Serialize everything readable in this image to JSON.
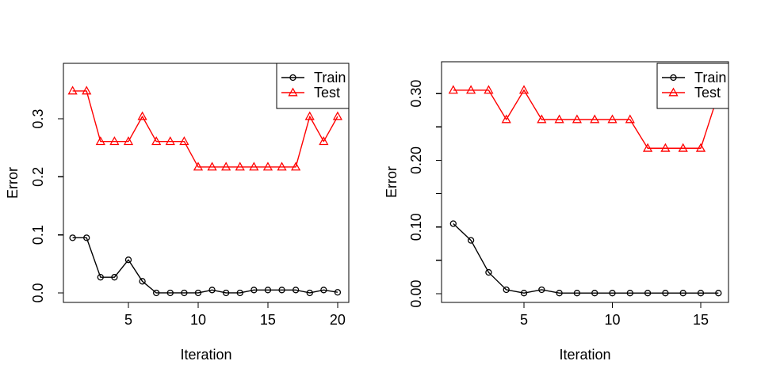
{
  "figure": {
    "background_color": "#ffffff",
    "axis_color": "#000000",
    "train_color": "#000000",
    "test_color": "#ff0000"
  },
  "chart_data": [
    {
      "type": "line",
      "title": "",
      "xlabel": "Iteration",
      "ylabel": "Error",
      "x": [
        1,
        2,
        3,
        4,
        5,
        6,
        7,
        8,
        9,
        10,
        11,
        12,
        13,
        14,
        15,
        16,
        17,
        18,
        19,
        20
      ],
      "series": [
        {
          "name": "Train",
          "color": "#000000",
          "marker": "circle",
          "values": [
            0.095,
            0.095,
            0.027,
            0.027,
            0.057,
            0.02,
            0.0,
            0.0,
            0.0,
            0.0,
            0.005,
            0.0,
            0.0,
            0.005,
            0.005,
            0.005,
            0.005,
            0.0,
            0.005,
            0.001
          ]
        },
        {
          "name": "Test",
          "color": "#ff0000",
          "marker": "triangle",
          "values": [
            0.348,
            0.348,
            0.261,
            0.261,
            0.261,
            0.304,
            0.261,
            0.261,
            0.261,
            0.217,
            0.217,
            0.217,
            0.217,
            0.217,
            0.217,
            0.217,
            0.217,
            0.304,
            0.261,
            0.304
          ]
        }
      ],
      "xlim": [
        0.34,
        20.8
      ],
      "ylim": [
        -0.0164,
        0.3956
      ],
      "xticks": [
        {
          "v": 5,
          "label": "5"
        },
        {
          "v": 10,
          "label": "10"
        },
        {
          "v": 15,
          "label": "15"
        },
        {
          "v": 20,
          "label": "20"
        }
      ],
      "yticks_major": [
        {
          "v": 0.0,
          "label": "0.0"
        },
        {
          "v": 0.1,
          "label": "0.1"
        },
        {
          "v": 0.2,
          "label": "0.2"
        },
        {
          "v": 0.3,
          "label": "0.3"
        }
      ],
      "yticks_minor": [],
      "grid": false,
      "legend": {
        "position": "top-right",
        "entries": [
          {
            "label": "Train",
            "color": "#000000",
            "marker": "circle"
          },
          {
            "label": "Test",
            "color": "#ff0000",
            "marker": "triangle"
          }
        ]
      }
    },
    {
      "type": "line",
      "title": "",
      "xlabel": "Iteration",
      "ylabel": "Error",
      "x": [
        1,
        2,
        3,
        4,
        5,
        6,
        7,
        8,
        9,
        10,
        11,
        12,
        13,
        14,
        15,
        16
      ],
      "series": [
        {
          "name": "Train",
          "color": "#000000",
          "marker": "circle",
          "values": [
            0.105,
            0.08,
            0.032,
            0.006,
            0.001,
            0.006,
            0.001,
            0.001,
            0.001,
            0.001,
            0.001,
            0.001,
            0.001,
            0.001,
            0.001,
            0.001
          ]
        },
        {
          "name": "Test",
          "color": "#ff0000",
          "marker": "triangle",
          "values": [
            0.305,
            0.305,
            0.305,
            0.261,
            0.305,
            0.261,
            0.261,
            0.261,
            0.261,
            0.261,
            0.261,
            0.218,
            0.218,
            0.218,
            0.218,
            0.3
          ]
        }
      ],
      "xlim": [
        0.336,
        16.57
      ],
      "ylim": [
        -0.013,
        0.3476
      ],
      "xticks": [
        {
          "v": 5,
          "label": "5"
        },
        {
          "v": 10,
          "label": "10"
        },
        {
          "v": 15,
          "label": "15"
        }
      ],
      "yticks_major": [
        {
          "v": 0.0,
          "label": "0.00"
        },
        {
          "v": 0.1,
          "label": "0.10"
        },
        {
          "v": 0.2,
          "label": "0.20"
        },
        {
          "v": 0.3,
          "label": "0.30"
        }
      ],
      "yticks_minor": [
        0.05,
        0.15,
        0.25
      ],
      "grid": false,
      "legend": {
        "position": "top-right",
        "entries": [
          {
            "label": "Train",
            "color": "#000000",
            "marker": "circle"
          },
          {
            "label": "Test",
            "color": "#ff0000",
            "marker": "triangle"
          }
        ]
      }
    }
  ]
}
